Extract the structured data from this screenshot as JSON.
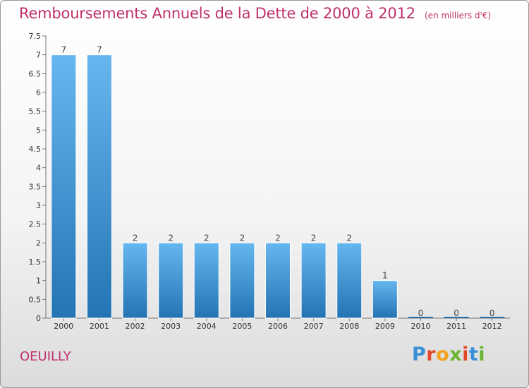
{
  "header": {
    "title": "Remboursements Annuels de la Dette de 2000 à 2012",
    "subtitle": "(en milliers d'€)"
  },
  "footer": {
    "place": "OEUILLY",
    "logo": "Proxiti"
  },
  "colors": {
    "title": "#c0306b",
    "bar_top": "#66b6ef",
    "bar_bottom": "#2474b4",
    "logo_letters": [
      "#3a8fd8",
      "#e2482a",
      "#f3a21c",
      "#6bb433",
      "#e2482a",
      "#3a8fd8",
      "#6bb433"
    ]
  },
  "chart_data": {
    "type": "bar",
    "title": "Remboursements Annuels de la Dette de 2000 à 2012",
    "subtitle": "(en milliers d'€)",
    "categories": [
      "2000",
      "2001",
      "2002",
      "2003",
      "2004",
      "2005",
      "2006",
      "2007",
      "2008",
      "2009",
      "2010",
      "2011",
      "2012"
    ],
    "values": [
      7,
      7,
      2,
      2,
      2,
      2,
      2,
      2,
      2,
      1,
      0,
      0,
      0
    ],
    "value_labels": [
      "7",
      "7",
      "2",
      "2",
      "2",
      "2",
      "2",
      "2",
      "2",
      "1",
      "0",
      "0",
      "0"
    ],
    "ylim": [
      0,
      7.5
    ],
    "yticks": [
      0,
      0.5,
      1,
      1.5,
      2,
      2.5,
      3,
      3.5,
      4,
      4.5,
      5,
      5.5,
      6,
      6.5,
      7,
      7.5
    ],
    "ytick_labels": [
      "0",
      "0.5",
      "1",
      "1.5",
      "2",
      "2.5",
      "3",
      "3.5",
      "4",
      "4.5",
      "5",
      "5.5",
      "6",
      "6.5",
      "7",
      "7.5"
    ],
    "xlabel": "",
    "ylabel": "",
    "grid": false
  }
}
